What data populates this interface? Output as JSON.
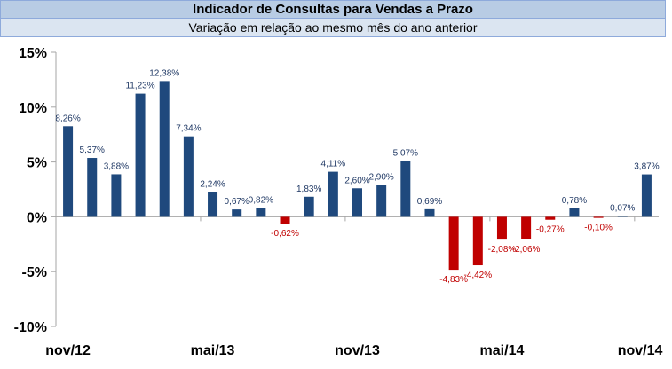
{
  "header": {
    "title": "Indicador de Consultas para Vendas a Prazo",
    "subtitle": "Variação em relação ao mesmo mês do ano anterior"
  },
  "colors": {
    "positive": "#1f497d",
    "negative": "#c00000",
    "positive_label": "#1f3864",
    "negative_label": "#c00000",
    "axis": "#a6a6a6"
  },
  "chart_data": {
    "type": "bar",
    "title": "Indicador de Consultas para Vendas a Prazo",
    "subtitle": "Variação em relação ao mesmo mês do ano anterior",
    "xlabel": "",
    "ylabel": "",
    "ylim": [
      -10,
      15
    ],
    "yticks": [
      15,
      10,
      5,
      0,
      -5,
      -10
    ],
    "ytick_labels": [
      "15%",
      "10%",
      "5%",
      "0%",
      "-5%",
      "-10%"
    ],
    "x_tick_labels": [
      {
        "label": "nov/12",
        "index": 0
      },
      {
        "label": "mai/13",
        "index": 6
      },
      {
        "label": "nov/13",
        "index": 12
      },
      {
        "label": "mai/14",
        "index": 18
      },
      {
        "label": "nov/14",
        "index": 24
      }
    ],
    "values": [
      8.26,
      5.37,
      3.88,
      11.23,
      12.38,
      7.34,
      2.24,
      0.67,
      0.82,
      -0.62,
      1.83,
      4.11,
      2.6,
      2.9,
      5.07,
      0.69,
      -4.83,
      -4.42,
      -2.08,
      -2.06,
      -0.27,
      0.78,
      -0.1,
      0.07,
      3.87
    ],
    "data_labels": [
      "8,26%",
      "5,37%",
      "3,88%",
      "11,23%",
      "12,38%",
      "7,34%",
      "2,24%",
      "0,67%",
      "0,82%",
      "-0,62%",
      "1,83%",
      "4,11%",
      "2,60%",
      "2,90%",
      "5,07%",
      "0,69%",
      "-4,83%",
      "-4,42%",
      "-2,08%",
      "-2,06%",
      "-0,27%",
      "0,78%",
      "-0,10%",
      "0,07%",
      "3,87%"
    ],
    "grid": false,
    "legend": "none"
  }
}
